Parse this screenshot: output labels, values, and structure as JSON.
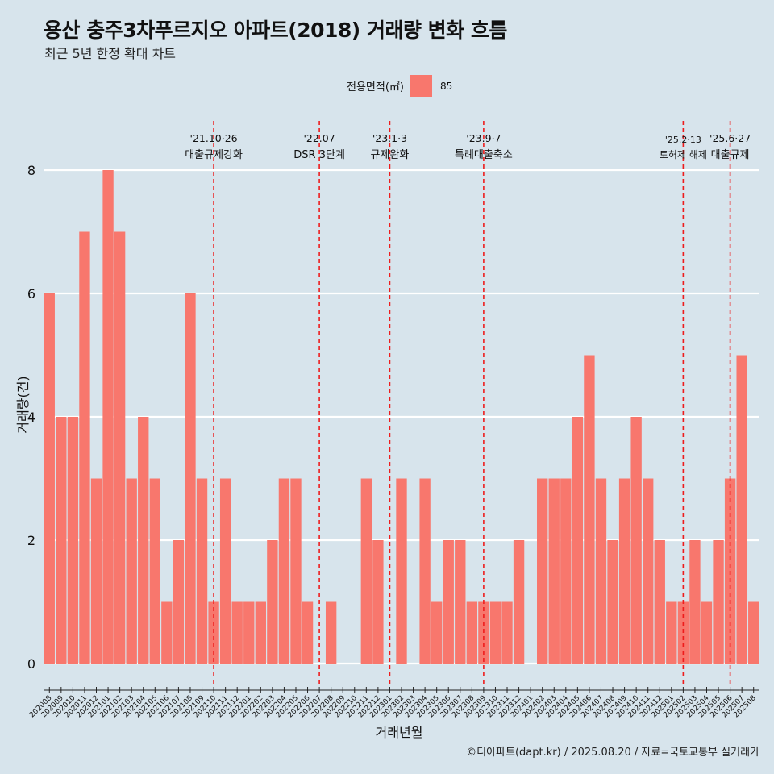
{
  "title": "용산 충주3차푸르지오 아파트(2018) 거래량 변화 흐름",
  "subtitle": "최근 5년 한정 확대 차트",
  "caption": "©디아파트(dapt.kr) / 2025.08.20 / 자료=국토교통부 실거래가",
  "legend": {
    "title": "전용면적(㎡)",
    "item": "85"
  },
  "colors": {
    "bar": "#f8776d",
    "event_line": "#ee1c1c",
    "grid": "#ffffff",
    "background": "#d7e4ec"
  },
  "chart_data": {
    "type": "bar",
    "xlabel": "거래년월",
    "ylabel": "거래량(건)",
    "ylim": [
      0,
      8
    ],
    "yticks": [
      0,
      2,
      4,
      6,
      8
    ],
    "categories": [
      "202008",
      "202009",
      "202010",
      "202011",
      "202012",
      "202101",
      "202102",
      "202103",
      "202104",
      "202105",
      "202106",
      "202107",
      "202108",
      "202109",
      "202110",
      "202111",
      "202112",
      "202201",
      "202202",
      "202203",
      "202204",
      "202205",
      "202206",
      "202207",
      "202208",
      "202209",
      "202210",
      "202211",
      "202212",
      "202301",
      "202302",
      "202303",
      "202304",
      "202305",
      "202306",
      "202307",
      "202308",
      "202309",
      "202310",
      "202311",
      "202312",
      "202401",
      "202402",
      "202403",
      "202404",
      "202405",
      "202406",
      "202407",
      "202408",
      "202409",
      "202410",
      "202411",
      "202412",
      "202501",
      "202502",
      "202503",
      "202504",
      "202505",
      "202506",
      "202507",
      "202508"
    ],
    "series": [
      {
        "name": "85",
        "values": [
          6,
          4,
          4,
          7,
          3,
          8,
          7,
          3,
          4,
          3,
          1,
          2,
          6,
          3,
          1,
          3,
          1,
          1,
          1,
          2,
          3,
          3,
          1,
          0,
          1,
          0,
          0,
          3,
          2,
          0,
          3,
          0,
          3,
          1,
          2,
          2,
          1,
          1,
          1,
          1,
          2,
          0,
          3,
          3,
          3,
          4,
          5,
          3,
          2,
          3,
          4,
          3,
          2,
          1,
          1,
          2,
          1,
          2,
          3,
          5,
          1
        ]
      }
    ],
    "events": [
      {
        "date": "'21.10·26",
        "label": "대출규제강화",
        "x": "202110"
      },
      {
        "date": "'22.07",
        "label": "DSR 3단계",
        "x": "202207"
      },
      {
        "date": "'23.1·3",
        "label": "규제완화",
        "x": "202301"
      },
      {
        "date": "'23.9·7",
        "label": "특례대출축소",
        "x": "202309"
      },
      {
        "date": "'25.2·13",
        "label": "토허제 해제",
        "x": "202502"
      },
      {
        "date": "'25.6·27",
        "label": "대출규제",
        "x": "202506"
      }
    ]
  }
}
